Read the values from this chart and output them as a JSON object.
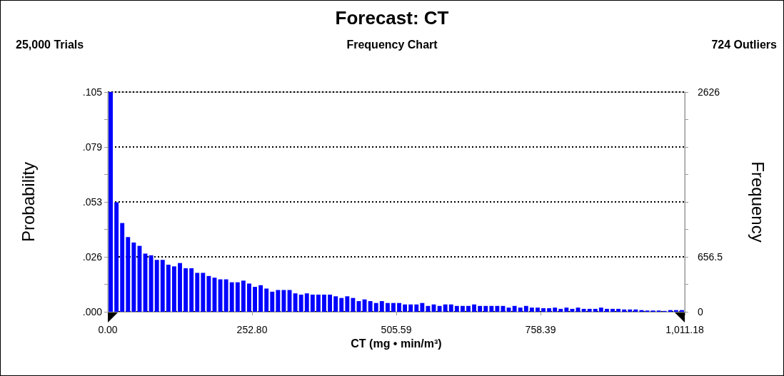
{
  "chart_data": {
    "type": "histogram",
    "title": "Forecast: CT",
    "subtitle": "Frequency Chart",
    "annotations": [
      "25,000 Trials",
      "724 Outliers"
    ],
    "xlabel": "CT (mg • min/m³)",
    "ylabel": "Probability",
    "y2label": "Frequency",
    "color": "#0000ff",
    "bins": [
      0,
      10.11,
      20.22,
      30.34,
      40.45,
      50.56,
      60.67,
      70.78,
      80.89,
      91.01,
      101.12,
      111.23,
      121.34,
      131.45,
      141.57,
      151.68,
      161.79,
      171.9,
      182.01,
      192.12,
      202.24,
      212.35,
      222.46,
      232.57,
      242.68,
      252.8,
      262.91,
      273.02,
      283.13,
      293.24,
      303.35,
      313.47,
      323.58,
      333.69,
      343.8,
      353.91,
      364.02,
      374.14,
      384.25,
      394.36,
      404.47,
      414.58,
      424.7,
      434.81,
      444.92,
      455.03,
      465.14,
      475.25,
      485.37,
      495.48,
      505.59,
      515.7,
      525.81,
      535.93,
      546.04,
      556.15,
      566.26,
      576.37,
      586.48,
      596.6,
      606.71,
      616.82,
      626.93,
      637.04,
      647.16,
      657.27,
      667.38,
      677.49,
      687.6,
      697.71,
      707.83,
      717.94,
      728.05,
      738.16,
      748.27,
      758.39,
      768.5,
      778.61,
      788.72,
      798.83,
      808.94,
      819.06,
      829.17,
      839.28,
      849.39,
      859.5,
      869.61,
      879.73,
      889.84,
      899.95,
      910.06,
      920.17,
      930.29,
      940.4,
      950.51,
      960.62,
      970.73,
      980.84,
      990.96,
      1001.07,
      1011.18
    ],
    "values": [
      0.105,
      0.0523,
      0.0424,
      0.0357,
      0.0331,
      0.0315,
      0.0278,
      0.027,
      0.0248,
      0.0248,
      0.0225,
      0.0217,
      0.0233,
      0.0208,
      0.0208,
      0.0186,
      0.0186,
      0.0171,
      0.0163,
      0.0155,
      0.0155,
      0.0141,
      0.0141,
      0.0149,
      0.0135,
      0.0119,
      0.0127,
      0.0111,
      0.0096,
      0.0104,
      0.0104,
      0.0104,
      0.0088,
      0.0082,
      0.0088,
      0.0082,
      0.0082,
      0.0082,
      0.0082,
      0.0074,
      0.0066,
      0.0074,
      0.0066,
      0.0051,
      0.0059,
      0.0051,
      0.0042,
      0.0051,
      0.0042,
      0.0042,
      0.0042,
      0.0035,
      0.0035,
      0.0035,
      0.0042,
      0.0028,
      0.0035,
      0.0028,
      0.0035,
      0.0035,
      0.0028,
      0.0028,
      0.0028,
      0.0035,
      0.0028,
      0.0028,
      0.0028,
      0.0028,
      0.0028,
      0.002,
      0.0028,
      0.002,
      0.0028,
      0.002,
      0.002,
      0.0017,
      0.0017,
      0.002,
      0.0014,
      0.002,
      0.0014,
      0.002,
      0.0014,
      0.0014,
      0.0014,
      0.002,
      0.0014,
      0.0014,
      0.0014,
      0.0011,
      0.0011,
      0.0011,
      0.0008,
      0.0006,
      0.0006,
      0.0006,
      0.0004,
      0.0008,
      0.0008,
      0.0008
    ],
    "xlim": [
      0,
      1011.18
    ],
    "xticks": [
      {
        "value": 0,
        "label": "0.00"
      },
      {
        "value": 252.8,
        "label": "252.80"
      },
      {
        "value": 505.59,
        "label": "505.59"
      },
      {
        "value": 758.39,
        "label": "758.39"
      },
      {
        "value": 1011.18,
        "label": "1,011.18"
      }
    ],
    "ylim": [
      0,
      0.105
    ],
    "yticks": [
      {
        "value": 0,
        "label": ".000"
      },
      {
        "value": 0.013125,
        "label": null
      },
      {
        "value": 0.02625,
        "label": ".026"
      },
      {
        "value": 0.039375,
        "label": null
      },
      {
        "value": 0.0525,
        "label": ".053"
      },
      {
        "value": 0.065625,
        "label": null
      },
      {
        "value": 0.07875,
        "label": ".079"
      },
      {
        "value": 0.091875,
        "label": null
      },
      {
        "value": 0.105,
        "label": ".105"
      }
    ],
    "y2lim": [
      0,
      2626
    ],
    "y2ticks": [
      0,
      {
        "value": 328.25,
        "label": null
      },
      656.5,
      {
        "value": 984.75,
        "label": null
      },
      {
        "value": 1313,
        "label": null
      },
      {
        "value": 1641.25,
        "label": null
      },
      {
        "value": 1969.5,
        "label": null
      },
      {
        "value": 2297.75,
        "label": null
      },
      2626
    ],
    "grid": "y"
  }
}
